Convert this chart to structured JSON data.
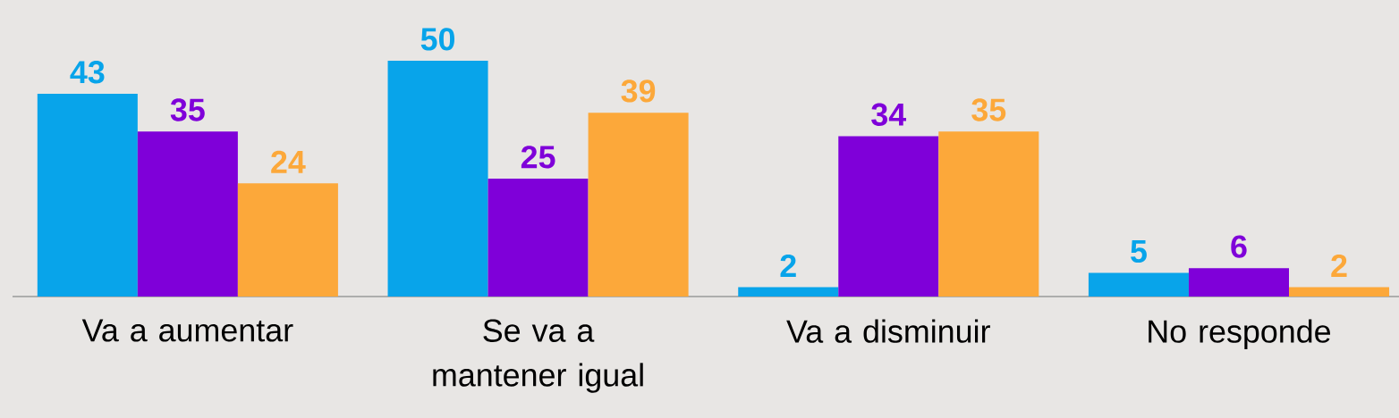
{
  "chart_data": {
    "type": "bar",
    "categories": [
      "Va a aumentar",
      "Se va a mantener igual",
      "Va a disminuir",
      "No responde"
    ],
    "series": [
      {
        "color": "#08a4ea",
        "values": [
          43,
          50,
          2,
          5
        ]
      },
      {
        "color": "#7f00d9",
        "values": [
          35,
          25,
          34,
          6
        ]
      },
      {
        "color": "#fca83a",
        "values": [
          24,
          39,
          35,
          2
        ]
      }
    ],
    "data_labels": true
  }
}
